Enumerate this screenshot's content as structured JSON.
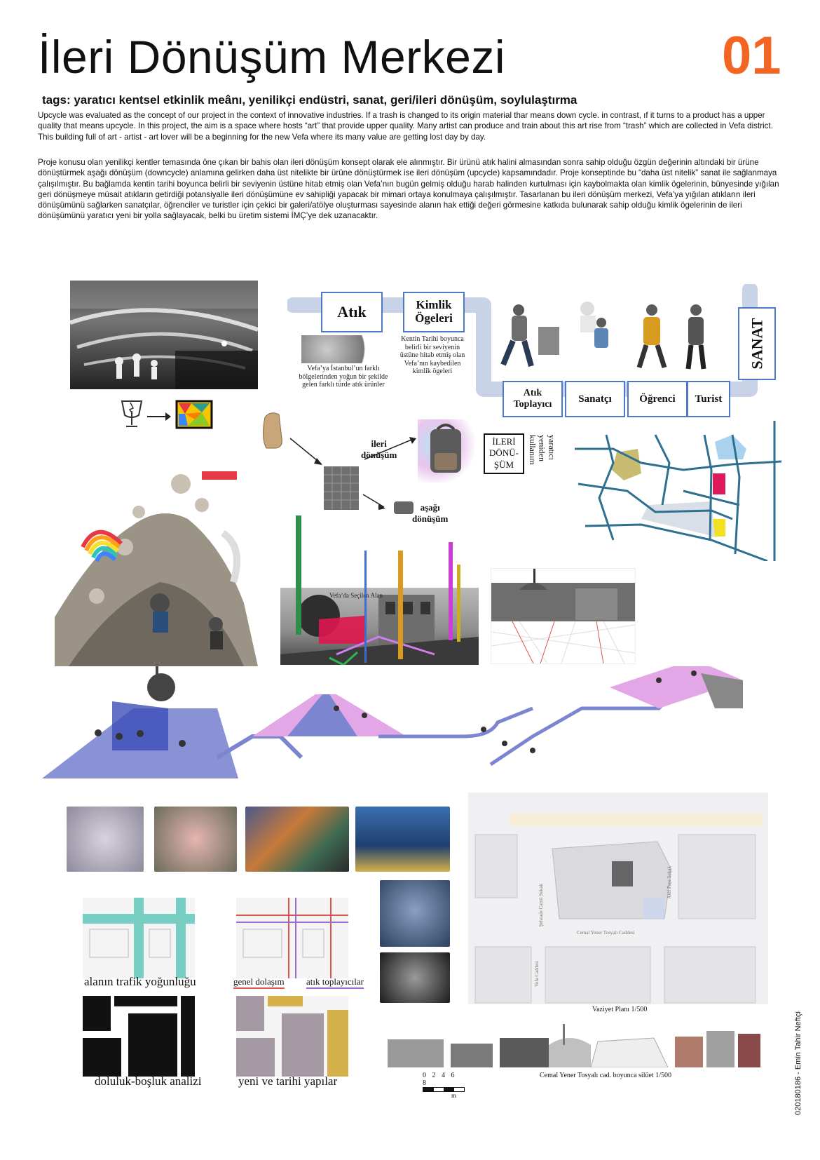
{
  "header": {
    "title": "İleri Dönüşüm Merkezi",
    "sheet_number": "01",
    "tags": "tags: yaratıcı kentsel etkinlik meânı, yenilikçi endüstri, sanat, geri/ileri dönüşüm, soylulaştırma"
  },
  "text": {
    "english": "Upcycle was evaluated as the concept of our project in the context of innovative industries. If a trash is changed to its origin material thar means down cycle. in contrast, ıf it turns to a product has a upper quality that means upcycle. In this project, the aim is a space where hosts “art” that provide upper quality. Many artist can produce and train about this art rise from “trash” which are collected in Vefa district. This building full of art - artist - art lover will be a beginning for the new Vefa where its many value are getting lost day by day.",
    "turkish": "Proje konusu olan yenilikçi kentler temasında öne çıkan bir bahis olan ileri dönüşüm konsept olarak ele alınmıştır. Bir ürünü atık halini almasından sonra sahip olduğu özgün değerinin altındaki bir ürüne dönüştürmek aşağı dönüşüm (downcycle) anlamına gelirken daha üst nitelikte bir ürüne dönüştürmek ise ileri dönüşüm (upcycle) kapsamındadır. Proje konseptinde bu “daha üst nitelik” sanat ile sağlanmaya çalışılmıştır. Bu bağlamda kentin tarihi boyunca belirli bir seviyenin üstüne hitab etmiş olan Vefa’nın bugün gelmiş olduğu harab halinden kurtulması için kaybolmakta olan kimlik ögelerinin, bünyesinde yığılan geri dönüşmeye müsait atıkların getirdiği potansiyalle ileri dönüşümüne ev sahipliği yapacak bir mimari ortaya konulmaya çalışılmıştır. Tasarlanan bu ileri dönüşüm merkezi, Vefa’ya yığılan atıkların ileri dönüşümünü sağlarken sanatçılar, öğrenciler ve turistler için çekici bir galeri/atölye oluşturması sayesinde alanın hak ettiği değeri görmesine katkıda bulunarak sahip olduğu kimlik ögelerinin de ileri dönüşümünü yaratıcı yeni bir yolla sağlayacak, belki bu üretim sistemi İMÇ’ye dek uzanacaktır."
  },
  "diagram": {
    "atik": "Atık",
    "kimlik_line1": "Kimlik",
    "kimlik_line2": "Ögeleri",
    "atik_caption": "Vefa’ya İstanbul’un farklı bölgelerinden yoğun bir şekilde gelen farklı türde atık ürünler",
    "kimlik_caption": "Kentin Tarihi boyunca belirli bir seviyenin üstüne hitab etmiş olan Vefa’nın kaybedilen kimlik ögeleri",
    "actors": [
      "Atık Toplayıcı",
      "Sanatçı",
      "Öğrenci",
      "Turist"
    ],
    "sanat": "SANAT"
  },
  "process": {
    "ileri_line1": "ileri",
    "ileri_line2": "dönüşüm",
    "asagi_line1": "aşağı",
    "asagi_line2": "dönüşüm",
    "box_l1": "İLERİ",
    "box_l2": "DÖNÜ-",
    "box_l3": "ŞÜM",
    "vertical_text": "yaratıcı yeniden kullanım"
  },
  "section_photo_label": "Vefa’da Seçilen Alan",
  "analysis": {
    "traffic": "alanın trafik yoğunluğu",
    "circulation": "genel dolaşım",
    "collectors": "atık toplayıcılar",
    "solid_void": "doluluk-boşluk analizi",
    "new_old": "yeni ve tarihi yapılar"
  },
  "site_plan": {
    "caption": "Vaziyet Planı 1/500",
    "street_1": "Cemal Yener Tosyalı Caddesi",
    "street_2": "Şehzade Camii Sokak",
    "street_3": "Vefa Caddesi",
    "street_4": "Akif Paşa Sokak"
  },
  "silhouette": {
    "caption": "Cemal Yener Tosyalı cad. boyunca silüet 1/500",
    "scale_numbers": "0 2 4 6 8",
    "scale_unit": "m"
  },
  "author": "020180186  -  Emin Tahir Neftçi",
  "colors": {
    "accent": "#f26522",
    "diagram_blue": "#4f79c2",
    "light_blue": "#c9d3e8",
    "pink": "#e3a6e6",
    "violet": "#7c86d0"
  }
}
